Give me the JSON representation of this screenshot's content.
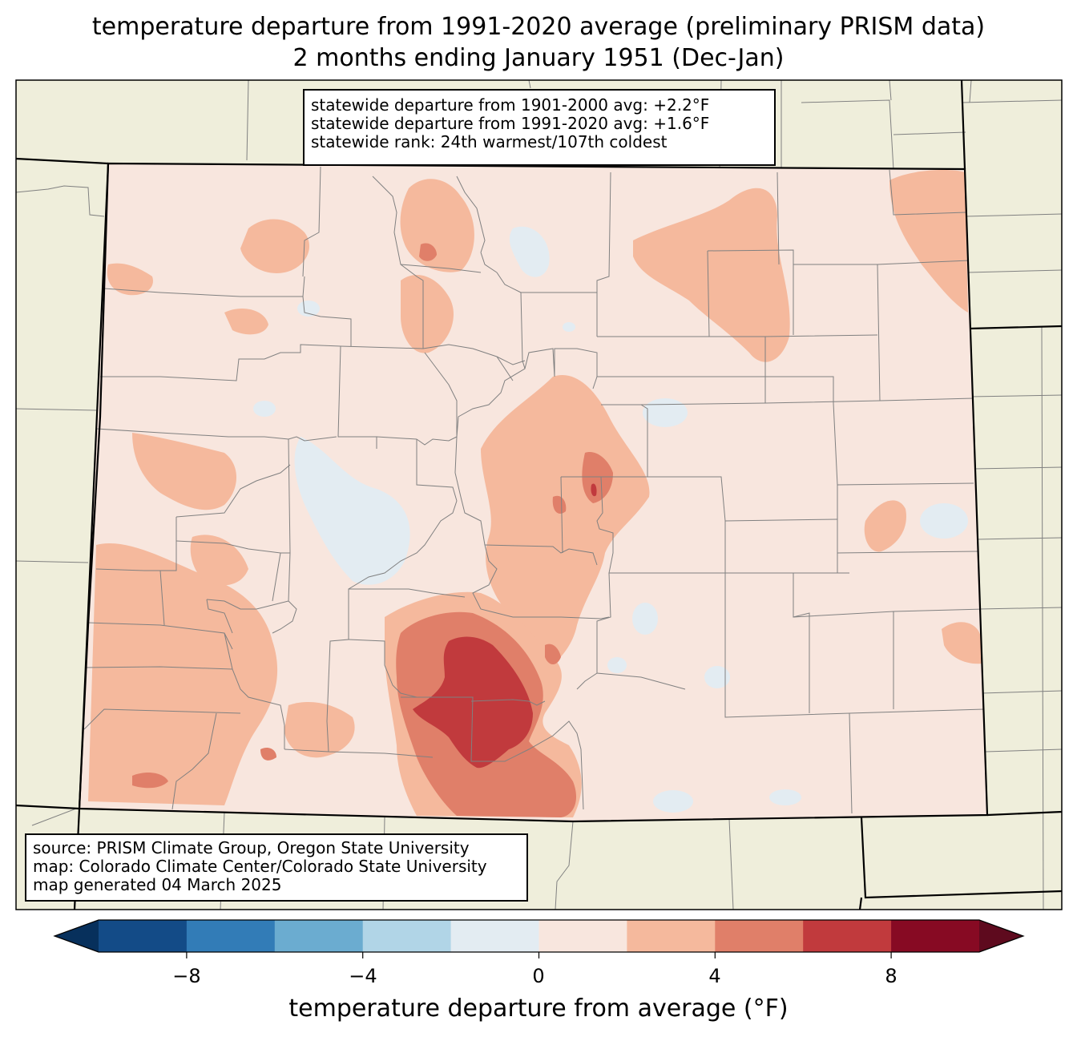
{
  "title_line1": "temperature departure from 1991-2020 average (preliminary PRISM data)",
  "title_line2": "2 months ending January 1951 (Dec-Jan)",
  "stats": [
    "statewide departure from 1901-2000 avg: +2.2°F",
    "statewide departure from 1991-2020 avg: +1.6°F",
    "statewide rank: 24th warmest/107th coldest"
  ],
  "source": [
    "source: PRISM Climate Group, Oregon State University",
    "map: Colorado Climate Center/Colorado State University",
    "map generated 04 March 2025"
  ],
  "colorbar": {
    "label": "temperature departure from average (°F)",
    "ticks": [
      "−8",
      "−4",
      "0",
      "4",
      "8"
    ],
    "tick_values": [
      -8,
      -4,
      0,
      4,
      8
    ],
    "bins": [
      {
        "from": -10,
        "to": -8,
        "color": "#134b87"
      },
      {
        "from": -8,
        "to": -6,
        "color": "#327cb7"
      },
      {
        "from": -6,
        "to": -4,
        "color": "#6bacd0"
      },
      {
        "from": -4,
        "to": -2,
        "color": "#b1d5e7"
      },
      {
        "from": -2,
        "to": 0,
        "color": "#e3ecf2"
      },
      {
        "from": 0,
        "to": 2,
        "color": "#f8e6de"
      },
      {
        "from": 2,
        "to": 4,
        "color": "#f5b99d"
      },
      {
        "from": 4,
        "to": 6,
        "color": "#e07f69"
      },
      {
        "from": 6,
        "to": 8,
        "color": "#c13a3d"
      },
      {
        "from": 8,
        "to": 10,
        "color": "#870a23"
      }
    ],
    "under_color": "#07305c",
    "over_color": "#5e0a1e"
  },
  "map_colors": {
    "land_outside": "#efeedb",
    "county_lines": "#808080",
    "state_lines": "#000000"
  }
}
